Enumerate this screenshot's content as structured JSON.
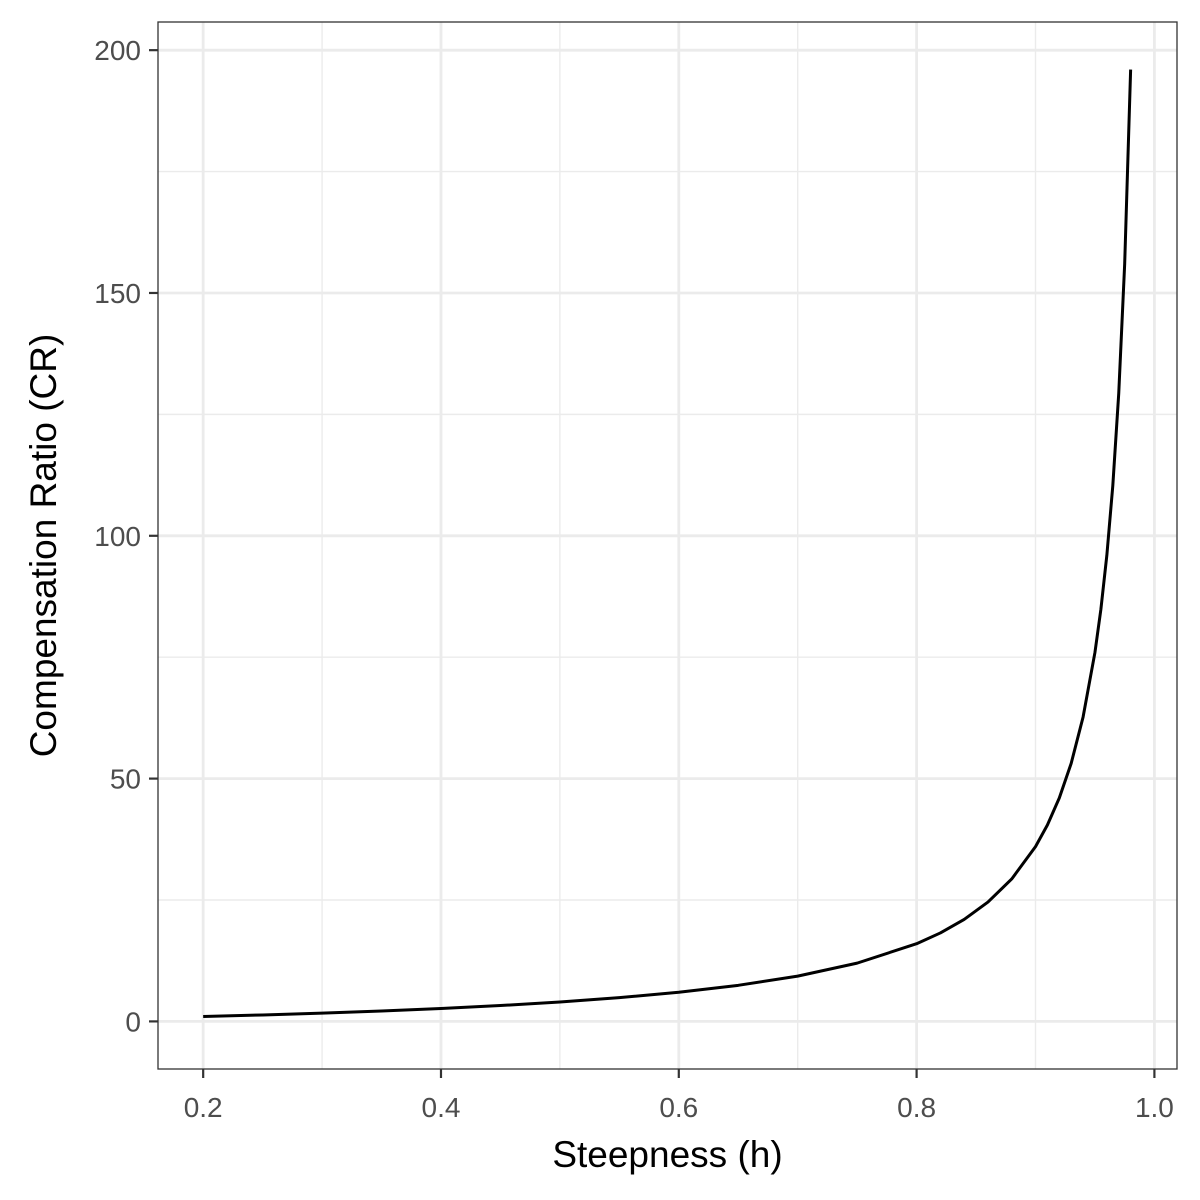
{
  "chart_data": {
    "type": "line",
    "title": "",
    "xlabel": "Steepness (h)",
    "ylabel": "Compensation Ratio (CR)",
    "xlim": [
      0.162,
      1.019
    ],
    "ylim": [
      -9.8,
      205.8
    ],
    "x_ticks": [
      0.2,
      0.4,
      0.6,
      0.8,
      1.0
    ],
    "x_tick_labels": [
      "0.2",
      "0.4",
      "0.6",
      "0.8",
      "1.0"
    ],
    "y_ticks": [
      0,
      50,
      100,
      150,
      200
    ],
    "y_tick_labels": [
      "0",
      "50",
      "100",
      "150",
      "200"
    ],
    "x_minor_ticks": [
      0.3,
      0.5,
      0.7,
      0.9
    ],
    "y_minor_ticks": [
      25,
      75,
      125,
      175
    ],
    "grid": true,
    "series": [
      {
        "color": "#000000",
        "x": [
          0.2,
          0.25,
          0.3,
          0.35,
          0.4,
          0.45,
          0.5,
          0.55,
          0.6,
          0.65,
          0.7,
          0.75,
          0.8,
          0.82,
          0.84,
          0.86,
          0.88,
          0.9,
          0.91,
          0.92,
          0.93,
          0.94,
          0.95,
          0.955,
          0.96,
          0.965,
          0.97,
          0.975,
          0.98
        ],
        "y": [
          1,
          1.33,
          1.71,
          2.15,
          2.67,
          3.27,
          4,
          4.89,
          6,
          7.43,
          9.33,
          12,
          16,
          18.22,
          21,
          24.57,
          29.33,
          36,
          40.44,
          46,
          53.14,
          62.67,
          76,
          84.89,
          96,
          110.29,
          129.33,
          156,
          196
        ]
      }
    ],
    "panel_border_color": "#333333",
    "grid_major_color": "#ebebeb",
    "grid_minor_color": "#ebebeb",
    "tick_label_color": "#4d4d4d"
  }
}
